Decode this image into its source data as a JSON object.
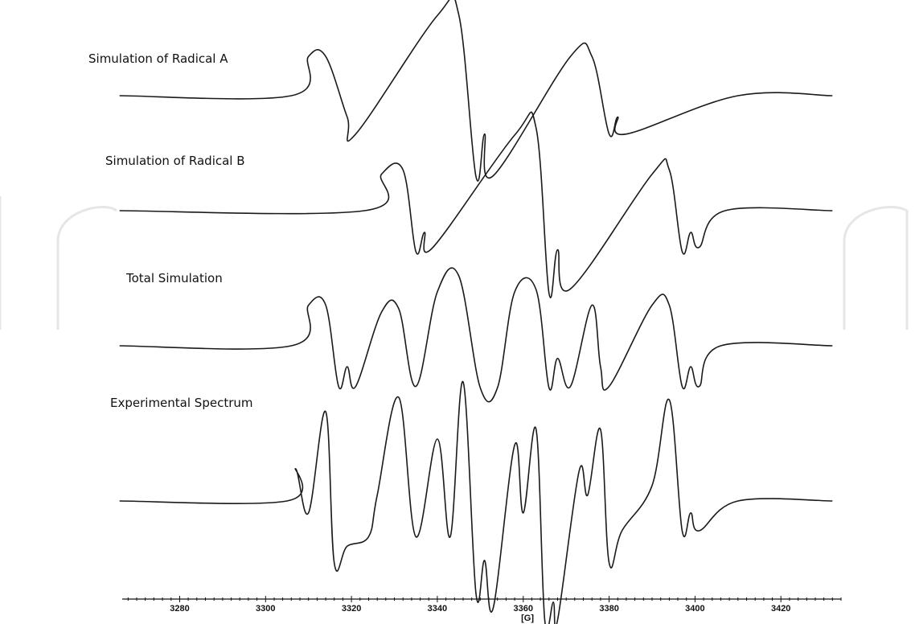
{
  "chart_data": {
    "type": "line",
    "xlabel": "[G]",
    "xlim": [
      3264,
      3434
    ],
    "xticks": [
      3280,
      3300,
      3320,
      3340,
      3360,
      3380,
      3400,
      3420
    ],
    "grid": false,
    "series": [
      {
        "name": "Simulation of Radical A",
        "baseline_x": [
          3266,
          3306,
          3410,
          3432
        ],
        "baseline_y": 0,
        "peaks": [
          {
            "x": 3310,
            "y": 0.46
          },
          {
            "x": 3314,
            "y": 0.46
          },
          {
            "x": 3319,
            "y": -0.25
          },
          {
            "x": 3321,
            "y": -0.45
          },
          {
            "x": 3340,
            "y": 0.94
          },
          {
            "x": 3345,
            "y": 0.95
          },
          {
            "x": 3349,
            "y": -0.95
          },
          {
            "x": 3351,
            "y": -0.45
          },
          {
            "x": 3353,
            "y": -0.94
          },
          {
            "x": 3371,
            "y": 0.46
          },
          {
            "x": 3376,
            "y": 0.46
          },
          {
            "x": 3380,
            "y": -0.45
          },
          {
            "x": 3382,
            "y": -0.25
          },
          {
            "x": 3384,
            "y": -0.45
          }
        ]
      },
      {
        "name": "Simulation of Radical B",
        "baseline_x": [
          3266,
          3323,
          3407,
          3432
        ],
        "baseline_y": 0,
        "peaks": [
          {
            "x": 3327,
            "y": 0.42
          },
          {
            "x": 3332,
            "y": 0.47
          },
          {
            "x": 3335,
            "y": -0.47
          },
          {
            "x": 3337,
            "y": -0.25
          },
          {
            "x": 3339,
            "y": -0.42
          },
          {
            "x": 3358,
            "y": 0.87
          },
          {
            "x": 3363,
            "y": 0.95
          },
          {
            "x": 3366,
            "y": -0.95
          },
          {
            "x": 3368,
            "y": -0.45
          },
          {
            "x": 3371,
            "y": -0.9
          },
          {
            "x": 3390,
            "y": 0.42
          },
          {
            "x": 3394,
            "y": 0.47
          },
          {
            "x": 3397,
            "y": -0.47
          },
          {
            "x": 3399,
            "y": -0.25
          },
          {
            "x": 3401,
            "y": -0.42
          }
        ]
      },
      {
        "name": "Total Simulation",
        "baseline_x": [
          3266,
          3306,
          3406,
          3432
        ],
        "baseline_y": 0,
        "peaks": [
          {
            "x": 3310,
            "y": 0.58
          },
          {
            "x": 3314,
            "y": 0.58
          },
          {
            "x": 3317,
            "y": -0.58
          },
          {
            "x": 3319,
            "y": -0.3
          },
          {
            "x": 3321,
            "y": -0.58
          },
          {
            "x": 3327,
            "y": 0.48
          },
          {
            "x": 3331,
            "y": 0.53
          },
          {
            "x": 3335,
            "y": -0.58
          },
          {
            "x": 3340,
            "y": 0.77
          },
          {
            "x": 3345,
            "y": 1.0
          },
          {
            "x": 3350,
            "y": -0.6
          },
          {
            "x": 3354,
            "y": -0.6
          },
          {
            "x": 3358,
            "y": 0.77
          },
          {
            "x": 3363,
            "y": 0.8
          },
          {
            "x": 3366,
            "y": -0.6
          },
          {
            "x": 3368,
            "y": -0.18
          },
          {
            "x": 3371,
            "y": -0.58
          },
          {
            "x": 3376,
            "y": 0.58
          },
          {
            "x": 3378,
            "y": -0.3
          },
          {
            "x": 3380,
            "y": -0.58
          },
          {
            "x": 3390,
            "y": 0.58
          },
          {
            "x": 3394,
            "y": 0.58
          },
          {
            "x": 3397,
            "y": -0.58
          },
          {
            "x": 3399,
            "y": -0.3
          },
          {
            "x": 3401,
            "y": -0.58
          }
        ]
      },
      {
        "name": "Experimental Spectrum",
        "baseline_x": [
          3266,
          3305,
          3410,
          3432
        ],
        "baseline_y": 0,
        "peaks": [
          {
            "x": 3307,
            "y": 0.27
          },
          {
            "x": 3310,
            "y": -0.1
          },
          {
            "x": 3314,
            "y": 0.75
          },
          {
            "x": 3316,
            "y": -0.52
          },
          {
            "x": 3319,
            "y": -0.38
          },
          {
            "x": 3324,
            "y": -0.3
          },
          {
            "x": 3326,
            "y": 0.05
          },
          {
            "x": 3331,
            "y": 0.87
          },
          {
            "x": 3335,
            "y": -0.3
          },
          {
            "x": 3340,
            "y": 0.52
          },
          {
            "x": 3343,
            "y": -0.3
          },
          {
            "x": 3346,
            "y": 1.0
          },
          {
            "x": 3349,
            "y": -0.78
          },
          {
            "x": 3351,
            "y": -0.5
          },
          {
            "x": 3353,
            "y": -0.9
          },
          {
            "x": 3358,
            "y": 0.47
          },
          {
            "x": 3360,
            "y": -0.1
          },
          {
            "x": 3363,
            "y": 0.6
          },
          {
            "x": 3365,
            "y": -1.0
          },
          {
            "x": 3367,
            "y": -0.85
          },
          {
            "x": 3368,
            "y": -1.0
          },
          {
            "x": 3373,
            "y": 0.25
          },
          {
            "x": 3375,
            "y": 0.05
          },
          {
            "x": 3378,
            "y": 0.6
          },
          {
            "x": 3380,
            "y": -0.52
          },
          {
            "x": 3383,
            "y": -0.25
          },
          {
            "x": 3390,
            "y": 0.13
          },
          {
            "x": 3394,
            "y": 0.85
          },
          {
            "x": 3397,
            "y": -0.25
          },
          {
            "x": 3399,
            "y": -0.1
          },
          {
            "x": 3401,
            "y": -0.25
          }
        ]
      }
    ]
  }
}
